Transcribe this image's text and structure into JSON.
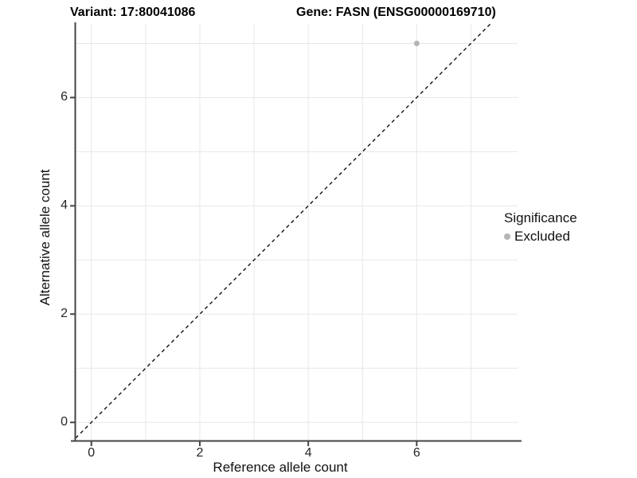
{
  "chart_data": {
    "type": "scatter",
    "title_left": "Variant: 17:80041086",
    "title_right": "Gene: FASN (ENSG00000169710)",
    "xlabel": "Reference allele count",
    "ylabel": "Alternative allele count",
    "x_ticks": [
      0,
      2,
      4,
      6
    ],
    "y_ticks": [
      0,
      2,
      4,
      6
    ],
    "xlim": [
      -0.29,
      7.86
    ],
    "ylim": [
      -0.35,
      7.36
    ],
    "grid": true,
    "grid_interval": 1,
    "points": [
      {
        "x": 6,
        "y": 7,
        "series": "Excluded"
      }
    ],
    "identity_line": {
      "equation": "y = x",
      "style": "dashed",
      "color": "#121212"
    },
    "legend": {
      "title": "Significance",
      "position": "right",
      "entries": [
        {
          "label": "Excluded",
          "color": "#b5b5b5"
        }
      ]
    }
  },
  "colors": {
    "background": "#ffffff",
    "gridline": "#e7e7e7",
    "axis_line": "#454545",
    "tick_label": "#262626",
    "point": "#b5b5b5"
  }
}
